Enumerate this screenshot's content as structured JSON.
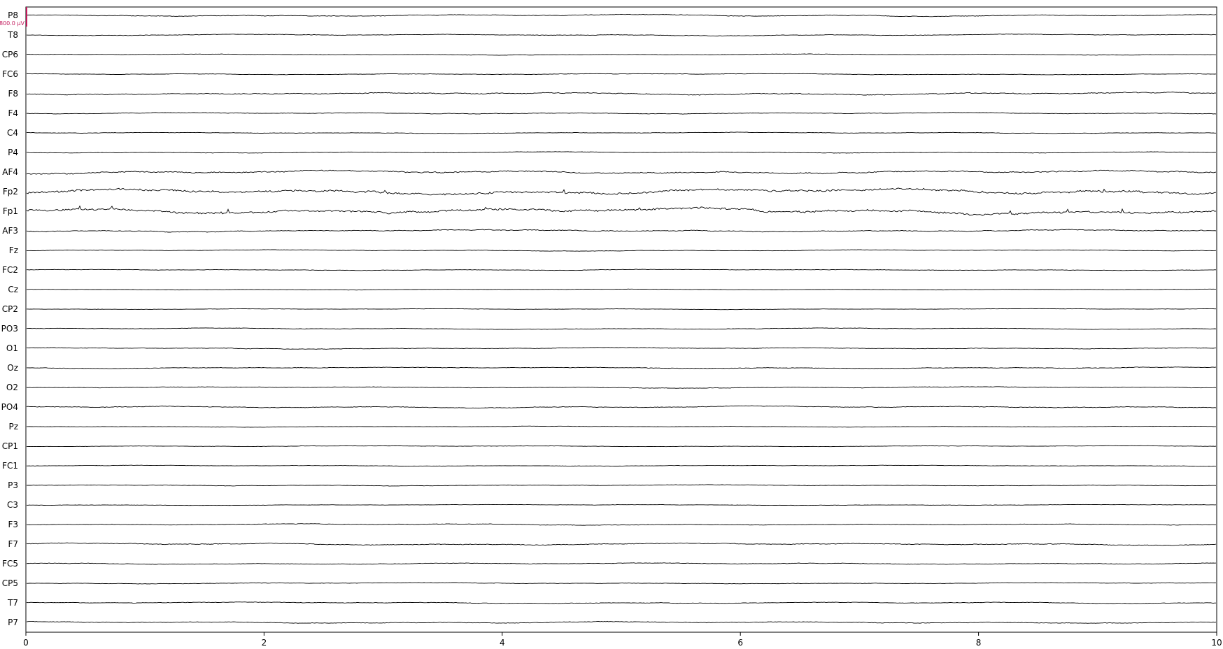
{
  "chart_data": {
    "type": "line",
    "title": "",
    "xlabel": "",
    "ylabel": "",
    "xlim": [
      0,
      10
    ],
    "x_ticks": [
      {
        "value": 0,
        "label": "0"
      },
      {
        "value": 2,
        "label": "2"
      },
      {
        "value": 4,
        "label": "4"
      },
      {
        "value": 6,
        "label": "6"
      },
      {
        "value": 8,
        "label": "8"
      },
      {
        "value": 10,
        "label": "10"
      }
    ],
    "grid": false,
    "scale_bar": {
      "label": "800.0 µV",
      "value_uv": 800,
      "channel": "P8",
      "color": "#c2185b"
    },
    "trace_color": "#000000",
    "channels": [
      {
        "name": "P8",
        "activity": 0.6
      },
      {
        "name": "T8",
        "activity": 0.5
      },
      {
        "name": "CP6",
        "activity": 0.4
      },
      {
        "name": "FC6",
        "activity": 0.4
      },
      {
        "name": "F8",
        "activity": 0.9
      },
      {
        "name": "F4",
        "activity": 0.5
      },
      {
        "name": "C4",
        "activity": 0.4
      },
      {
        "name": "P4",
        "activity": 0.4
      },
      {
        "name": "AF4",
        "activity": 1.2
      },
      {
        "name": "Fp2",
        "activity": 2.0
      },
      {
        "name": "Fp1",
        "activity": 2.0
      },
      {
        "name": "AF3",
        "activity": 0.8
      },
      {
        "name": "Fz",
        "activity": 0.4
      },
      {
        "name": "FC2",
        "activity": 0.4
      },
      {
        "name": "Cz",
        "activity": 0.3
      },
      {
        "name": "CP2",
        "activity": 0.3
      },
      {
        "name": "PO3",
        "activity": 0.4
      },
      {
        "name": "O1",
        "activity": 0.5
      },
      {
        "name": "Oz",
        "activity": 0.5
      },
      {
        "name": "O2",
        "activity": 0.5
      },
      {
        "name": "PO4",
        "activity": 0.6
      },
      {
        "name": "Pz",
        "activity": 0.3
      },
      {
        "name": "CP1",
        "activity": 0.3
      },
      {
        "name": "FC1",
        "activity": 0.3
      },
      {
        "name": "P3",
        "activity": 0.4
      },
      {
        "name": "C3",
        "activity": 0.3
      },
      {
        "name": "F3",
        "activity": 0.5
      },
      {
        "name": "F7",
        "activity": 0.7
      },
      {
        "name": "FC5",
        "activity": 0.5
      },
      {
        "name": "CP5",
        "activity": 0.4
      },
      {
        "name": "T7",
        "activity": 0.5
      },
      {
        "name": "P7",
        "activity": 0.6
      }
    ]
  }
}
